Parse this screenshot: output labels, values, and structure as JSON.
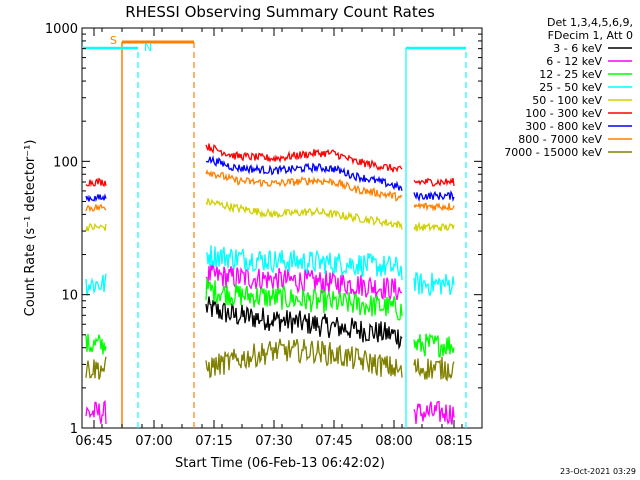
{
  "chart_data": {
    "type": "line",
    "title": "RHESSI Observing Summary Count Rates",
    "xlabel": "Start Time (06-Feb-13 06:42:02)",
    "ylabel": "Count Rate (s⁻¹ detector⁻¹)",
    "yscale": "log",
    "ylim": [
      1,
      1000
    ],
    "xlim": [
      "06:42",
      "08:22"
    ],
    "x_ticks": [
      "06:45",
      "07:00",
      "07:15",
      "07:30",
      "07:45",
      "08:00",
      "08:15"
    ],
    "y_ticks": [
      "1",
      "10",
      "100",
      "1000"
    ],
    "legend_position": "right",
    "legend_header": [
      "Det 1,3,4,5,6,9,",
      "FDecim 1, Att 0"
    ],
    "timestamp": "23-Oct-2021 03:29",
    "annotations": [
      {
        "text": "S",
        "color": "#ff8000"
      },
      {
        "text": "N",
        "color": "#00ffff"
      }
    ],
    "intervals": {
      "saa": {
        "color": "#ff8000",
        "start": "06:52",
        "end": "07:10"
      },
      "night": [
        {
          "color": "#00ffff",
          "start": "06:40",
          "end": "06:56"
        },
        {
          "color": "#00ffff",
          "start": "08:03",
          "end": "08:18"
        }
      ]
    },
    "series": [
      {
        "name": "3 - 6 keV",
        "color": "#000000",
        "segments": [
          {
            "x": [
              "07:13",
              "07:20",
              "07:30",
              "07:40",
              "07:50",
              "08:00",
              "08:02"
            ],
            "y": [
              8,
              7,
              6.5,
              6,
              5.5,
              5,
              4.8
            ]
          }
        ]
      },
      {
        "name": "6 - 12 keV",
        "color": "#ff00ff",
        "segments": [
          {
            "x": [
              "06:43",
              "06:48"
            ],
            "y": [
              1.3,
              1.3
            ]
          },
          {
            "x": [
              "07:13",
              "07:20",
              "07:30",
              "07:40",
              "07:50",
              "08:00",
              "08:02"
            ],
            "y": [
              14,
              13.5,
              13,
              12.5,
              12,
              11,
              10.5
            ]
          },
          {
            "x": [
              "08:05",
              "08:15"
            ],
            "y": [
              1.3,
              1.3
            ]
          }
        ]
      },
      {
        "name": "12 - 25 keV",
        "color": "#00ff00",
        "segments": [
          {
            "x": [
              "06:43",
              "06:48"
            ],
            "y": [
              4.2,
              4.2
            ]
          },
          {
            "x": [
              "07:13",
              "07:20",
              "07:30",
              "07:40",
              "07:50",
              "08:00",
              "08:02"
            ],
            "y": [
              11,
              10,
              9.5,
              9,
              8.5,
              8,
              7.5
            ]
          },
          {
            "x": [
              "08:05",
              "08:15"
            ],
            "y": [
              4.2,
              4.2
            ]
          }
        ]
      },
      {
        "name": "25 - 50 keV",
        "color": "#00ffff",
        "segments": [
          {
            "x": [
              "06:43",
              "06:48"
            ],
            "y": [
              12,
              12
            ]
          },
          {
            "x": [
              "07:13",
              "07:20",
              "07:30",
              "07:40",
              "07:50",
              "08:00",
              "08:02"
            ],
            "y": [
              20,
              19,
              18,
              17.5,
              17,
              16,
              15.5
            ]
          },
          {
            "x": [
              "08:05",
              "08:15"
            ],
            "y": [
              12,
              12
            ]
          }
        ]
      },
      {
        "name": "50 - 100 keV",
        "color": "#d0d000",
        "segments": [
          {
            "x": [
              "06:43",
              "06:48"
            ],
            "y": [
              32,
              32
            ]
          },
          {
            "x": [
              "07:13",
              "07:20",
              "07:30",
              "07:40",
              "07:45",
              "07:50",
              "08:00",
              "08:02"
            ],
            "y": [
              50,
              45,
              40,
              42,
              40,
              38,
              34,
              33
            ]
          },
          {
            "x": [
              "08:05",
              "08:15"
            ],
            "y": [
              32,
              32
            ]
          }
        ]
      },
      {
        "name": "100 - 300 keV",
        "color": "#ff0000",
        "segments": [
          {
            "x": [
              "06:43",
              "06:48"
            ],
            "y": [
              70,
              70
            ]
          },
          {
            "x": [
              "07:13",
              "07:20",
              "07:30",
              "07:40",
              "07:45",
              "07:50",
              "08:00",
              "08:02"
            ],
            "y": [
              130,
              110,
              105,
              115,
              115,
              100,
              88,
              85
            ]
          },
          {
            "x": [
              "08:05",
              "08:15"
            ],
            "y": [
              70,
              70
            ]
          }
        ]
      },
      {
        "name": "300 - 800 keV",
        "color": "#0000ff",
        "segments": [
          {
            "x": [
              "06:43",
              "06:48"
            ],
            "y": [
              53,
              53
            ]
          },
          {
            "x": [
              "07:13",
              "07:20",
              "07:30",
              "07:40",
              "07:45",
              "07:50",
              "08:00",
              "08:02"
            ],
            "y": [
              105,
              90,
              85,
              90,
              88,
              78,
              66,
              62
            ]
          },
          {
            "x": [
              "08:05",
              "08:15"
            ],
            "y": [
              55,
              55
            ]
          }
        ]
      },
      {
        "name": "800 - 7000 keV",
        "color": "#ff8000",
        "segments": [
          {
            "x": [
              "06:43",
              "06:48"
            ],
            "y": [
              45,
              45
            ]
          },
          {
            "x": [
              "07:13",
              "07:20",
              "07:30",
              "07:40",
              "07:45",
              "07:50",
              "08:00",
              "08:02"
            ],
            "y": [
              85,
              72,
              68,
              72,
              70,
              62,
              55,
              52
            ]
          },
          {
            "x": [
              "08:05",
              "08:15"
            ],
            "y": [
              46,
              46
            ]
          }
        ]
      },
      {
        "name": "7000 - 15000 keV",
        "color": "#808000",
        "segments": [
          {
            "x": [
              "06:43",
              "06:48"
            ],
            "y": [
              2.8,
              2.8
            ]
          },
          {
            "x": [
              "07:13",
              "07:20",
              "07:30",
              "07:40",
              "07:50",
              "08:00",
              "08:02"
            ],
            "y": [
              2.8,
              3.2,
              3.8,
              3.8,
              3.3,
              2.8,
              2.6
            ]
          },
          {
            "x": [
              "08:05",
              "08:15"
            ],
            "y": [
              2.8,
              2.8
            ]
          }
        ]
      }
    ]
  }
}
